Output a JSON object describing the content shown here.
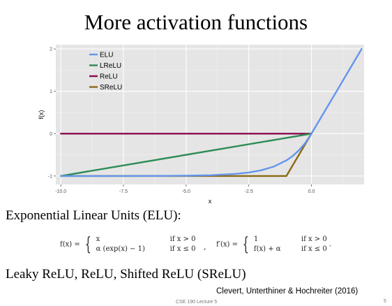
{
  "slide": {
    "title": "More activation functions",
    "heading_elu": "Exponential Linear Units (ELU):",
    "heading_variants": "Leaky ReLU, ReLU, Shifted ReLU (SReLU)",
    "citation": "Clevert, Unterthiner &  Hochreiter (2016)",
    "footer": "CSE 190 Lecture 5",
    "page_number": "5"
  },
  "formula": {
    "f_lhs": "f(x) =",
    "f_case1_expr": "x",
    "f_case1_cond": "if x > 0",
    "f_case2_expr": "α (exp(x) − 1)",
    "f_case2_cond": "if x ≤ 0",
    "separator": ",",
    "fp_lhs": "f′(x) =",
    "fp_case1_expr": "1",
    "fp_case1_cond": "if x > 0",
    "fp_case2_expr": "f(x) + α",
    "fp_case2_cond": "if x ≤ 0",
    "end": "."
  },
  "chart_data": {
    "type": "line",
    "xlabel": "x",
    "ylabel": "f(x)",
    "xlim": [
      -10.2,
      2.1
    ],
    "ylim": [
      -1.2,
      2.1
    ],
    "x_ticks": [
      -10.0,
      -7.5,
      -5.0,
      -2.5,
      0.0
    ],
    "x_tick_labels": [
      "-10.0",
      "-7.5",
      "-5.0",
      "-2.5",
      "0.0"
    ],
    "y_ticks": [
      -1,
      0,
      1,
      2
    ],
    "y_tick_labels": [
      "-1",
      "0",
      "1",
      "2"
    ],
    "grid": true,
    "background": "#e5e5e5",
    "legend_position": "top-left",
    "series": [
      {
        "name": "ELU",
        "color": "#6495ed",
        "x": [
          -10,
          -8,
          -6,
          -5,
          -4,
          -3,
          -2.5,
          -2,
          -1.5,
          -1,
          -0.75,
          -0.5,
          -0.25,
          0,
          1,
          2
        ],
        "y": [
          -1.0,
          -1.0,
          -0.998,
          -0.993,
          -0.982,
          -0.95,
          -0.918,
          -0.865,
          -0.777,
          -0.632,
          -0.528,
          -0.393,
          -0.221,
          0,
          1,
          2
        ]
      },
      {
        "name": "LReLU",
        "color": "#2e8b57",
        "x": [
          -10,
          0
        ],
        "y": [
          -1,
          0
        ]
      },
      {
        "name": "ReLU",
        "color": "#8b0a50",
        "x": [
          -10,
          0
        ],
        "y": [
          0,
          0
        ]
      },
      {
        "name": "SReLU",
        "color": "#8b6914",
        "x": [
          -10,
          -1,
          0
        ],
        "y": [
          -1,
          -1,
          0
        ]
      }
    ]
  }
}
